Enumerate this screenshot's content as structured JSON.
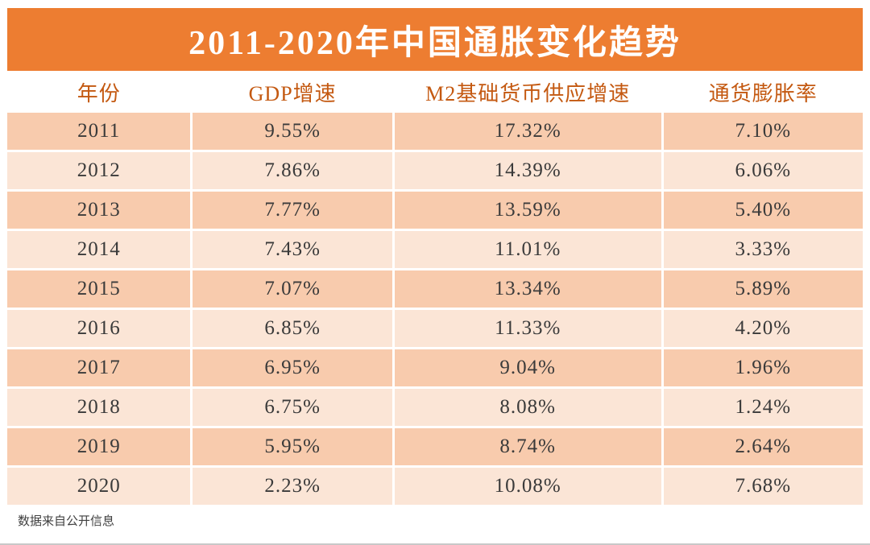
{
  "title": "2011-2020年中国通胀变化趋势",
  "footer": {
    "source_note": "数据来自公开信息"
  },
  "colors": {
    "banner_orange": "#ED7D31",
    "header_text": "#C45911",
    "row_odd_bg": "#F8CBAD",
    "row_even_bg": "#FBE5D6",
    "data_text": "#3A3A3A",
    "title_text": "#FFFFFF"
  },
  "chart_data": {
    "type": "table",
    "title": "2011-2020年中国通胀变化趋势",
    "columns": [
      "年份",
      "GDP增速",
      "M2基础货币供应增速",
      "通货膨胀率"
    ],
    "rows": [
      [
        "2011",
        "9.55%",
        "17.32%",
        "7.10%"
      ],
      [
        "2012",
        "7.86%",
        "14.39%",
        "6.06%"
      ],
      [
        "2013",
        "7.77%",
        "13.59%",
        "5.40%"
      ],
      [
        "2014",
        "7.43%",
        "11.01%",
        "3.33%"
      ],
      [
        "2015",
        "7.07%",
        "13.34%",
        "5.89%"
      ],
      [
        "2016",
        "6.85%",
        "11.33%",
        "4.20%"
      ],
      [
        "2017",
        "6.95%",
        "9.04%",
        "1.96%"
      ],
      [
        "2018",
        "6.75%",
        "8.08%",
        "1.24%"
      ],
      [
        "2019",
        "5.95%",
        "8.74%",
        "2.64%"
      ],
      [
        "2020",
        "2.23%",
        "10.08%",
        "7.68%"
      ]
    ],
    "source_note": "数据来自公开信息"
  }
}
